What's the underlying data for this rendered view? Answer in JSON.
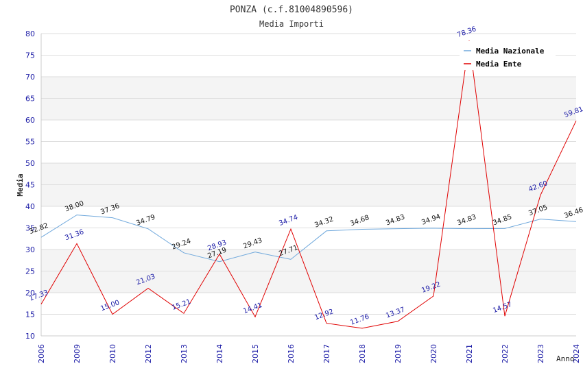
{
  "chart_data": {
    "type": "line",
    "title": "PONZA (c.f.81004890596)",
    "subtitle": "Media Importi",
    "xlabel": "Anno",
    "ylabel": "Media",
    "ylim": [
      10,
      80
    ],
    "yticks": [
      10,
      15,
      20,
      25,
      30,
      35,
      40,
      45,
      50,
      55,
      60,
      65,
      70,
      75,
      80
    ],
    "grid": true,
    "legend_position": "top-right",
    "categories": [
      "2006",
      "2009",
      "2010",
      "2012",
      "2013",
      "2014",
      "2015",
      "2016",
      "2017",
      "2018",
      "2019",
      "2020",
      "2021",
      "2022",
      "2023",
      "2024"
    ],
    "series": [
      {
        "name": "Media Nazionale",
        "color": "#6fa8dc",
        "values": [
          32.82,
          38.0,
          37.36,
          34.79,
          29.24,
          27.19,
          29.43,
          27.71,
          34.32,
          34.68,
          34.83,
          34.94,
          34.83,
          34.85,
          37.05,
          36.46
        ],
        "labels": [
          "32.82",
          "38.00",
          "37.36",
          "34.79",
          "29.24",
          "27.19",
          "29.43",
          "27.71",
          "34.32",
          "34.68",
          "34.83",
          "34.94",
          "34.83",
          "34.85",
          "37.05",
          "36.46"
        ]
      },
      {
        "name": "Media Ente",
        "color": "#e00000",
        "values": [
          17.33,
          31.36,
          15.0,
          21.03,
          15.21,
          28.93,
          14.41,
          34.74,
          12.92,
          11.76,
          13.37,
          19.22,
          78.36,
          14.57,
          42.6,
          59.81
        ],
        "labels": [
          "17.33",
          "31.36",
          "15.00",
          "21.03",
          "15.21",
          "28.93",
          "14.41",
          "34.74",
          "12.92",
          "11.76",
          "13.37",
          "19.22",
          "78.36",
          "14.57",
          "42.60",
          "59.81"
        ]
      }
    ]
  }
}
